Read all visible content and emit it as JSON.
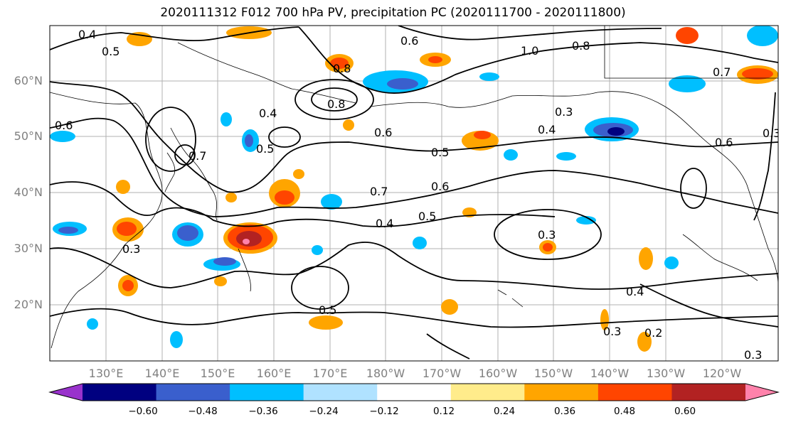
{
  "title": "2020111312 F012 700 hPa PV, precipitation PC (2020111700 - 2020111800)",
  "lat_labels": [
    "60°N",
    "50°N",
    "40°N",
    "30°N",
    "20°N"
  ],
  "lon_labels": [
    "130°E",
    "140°E",
    "150°E",
    "160°E",
    "170°E",
    "180°W",
    "170°W",
    "160°W",
    "150°W",
    "140°W",
    "130°W",
    "120°W"
  ],
  "colorbar": {
    "ticks": [
      "−0.60",
      "−0.48",
      "−0.36",
      "−0.24",
      "−0.12",
      "0.12",
      "0.24",
      "0.36",
      "0.48",
      "0.60"
    ],
    "colors": [
      "#9932cc",
      "#000080",
      "#3a5fcd",
      "#00bfff",
      "#b0e2ff",
      "#ffffff",
      "#ffec8b",
      "#ffa500",
      "#ff4500",
      "#b22222",
      "#ff82ab"
    ]
  },
  "contour_labels": [
    "0.4",
    "0.5",
    "0.6",
    "0.7",
    "0.8",
    "1.0",
    "0.3",
    "0.2"
  ]
}
